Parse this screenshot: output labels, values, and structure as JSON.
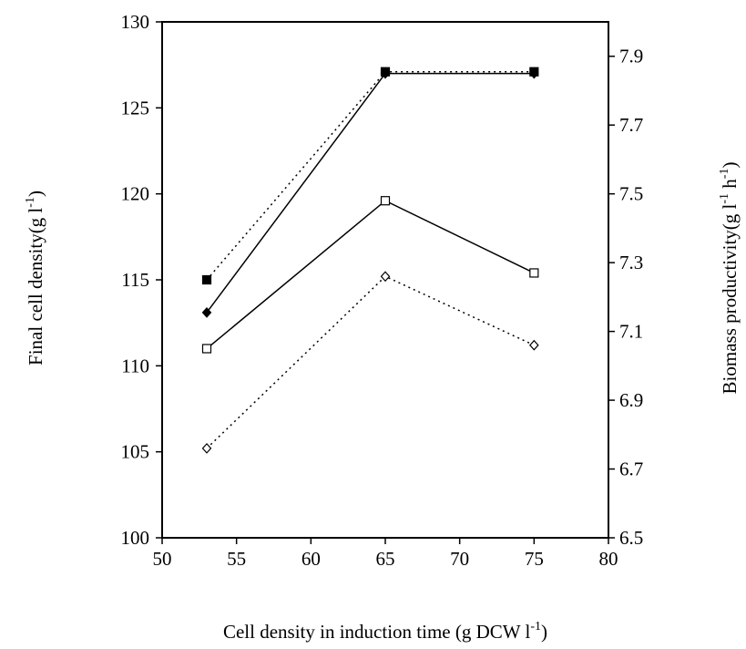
{
  "chart_data": {
    "type": "line",
    "xlabel": [
      "Cell density in induction time (g DCW l",
      "-1",
      ")"
    ],
    "ylabel": [
      "Final cell density(g l",
      "-1",
      ")"
    ],
    "y2label": [
      "Biomass productivity(g l",
      "-1",
      " h",
      "-1",
      ")"
    ],
    "x": [
      53,
      65,
      75
    ],
    "series": [
      {
        "color": "#000000",
        "marker": "square",
        "filled": true,
        "line": "dotted",
        "axis": "y",
        "values": [
          115.0,
          127.1,
          127.1
        ]
      },
      {
        "color": "#000000",
        "marker": "diamond",
        "filled": true,
        "line": "solid",
        "axis": "y",
        "values": [
          113.1,
          127.0,
          127.0
        ]
      },
      {
        "color": "#000000",
        "marker": "square",
        "filled": false,
        "line": "solid",
        "axis": "y2",
        "values": [
          7.05,
          7.48,
          7.27
        ]
      },
      {
        "color": "#000000",
        "marker": "diamond",
        "filled": false,
        "line": "dotted",
        "axis": "y2",
        "values": [
          6.76,
          7.26,
          7.06
        ]
      }
    ],
    "xlim": [
      50,
      80
    ],
    "xticks": [
      50,
      55,
      60,
      65,
      70,
      75,
      80
    ],
    "ylim": [
      100,
      130
    ],
    "yticks": [
      100,
      105,
      110,
      115,
      120,
      125,
      130
    ],
    "y2lim": [
      6.5,
      8.0
    ],
    "y2ticks": [
      6.5,
      6.7,
      6.9,
      7.1,
      7.3,
      7.5,
      7.7,
      7.9
    ],
    "grid": false
  }
}
